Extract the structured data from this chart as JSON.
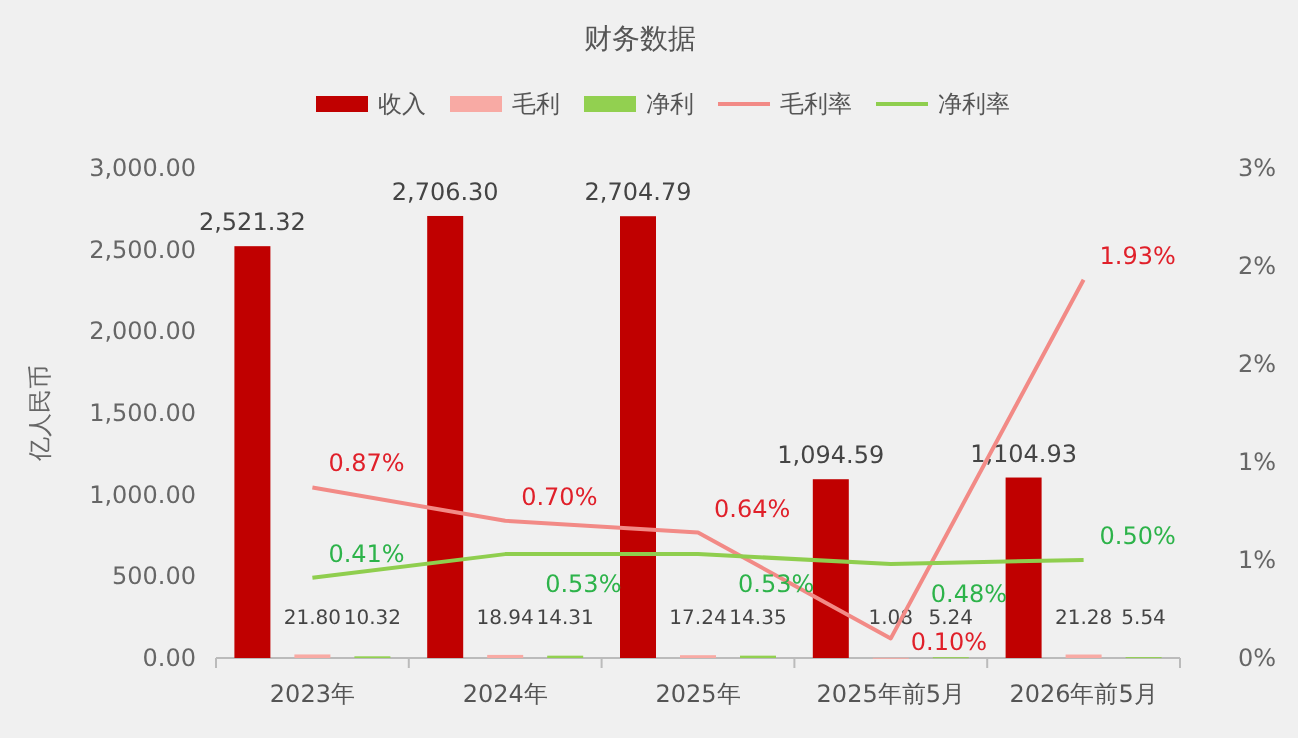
{
  "chart_data": {
    "type": "bar",
    "title": "财务数据",
    "ylabel": "亿人民币",
    "legend": "top",
    "categories": [
      "2023年",
      "2024年",
      "2025年",
      "2025年前5月",
      "2026年前5月"
    ],
    "series": [
      {
        "name": "收入",
        "color": "#c00000",
        "values": [
          2521.32,
          2706.3,
          2704.79,
          1094.59,
          1104.93
        ],
        "value_labels": [
          "2,521.32",
          "2,706.30",
          "2,704.79",
          "1,094.59",
          "1,104.93"
        ]
      },
      {
        "name": "毛利",
        "color": "#f8aaa4",
        "values": [
          21.8,
          18.94,
          17.24,
          1.08,
          21.28
        ],
        "value_labels": [
          "21.80",
          "18.94",
          "17.24",
          "1.08",
          "21.28"
        ]
      },
      {
        "name": "净利",
        "color": "#92d050",
        "values": [
          10.32,
          14.31,
          14.35,
          5.24,
          5.54
        ],
        "value_labels": [
          "10.32",
          "14.31",
          "14.35",
          "5.24",
          "5.54"
        ]
      },
      {
        "name": "毛利率",
        "type": "line",
        "axis": "y2",
        "color": "#f28a86",
        "values": [
          0.87,
          0.7,
          0.64,
          0.1,
          1.93
        ],
        "value_labels": [
          "0.87%",
          "0.70%",
          "0.64%",
          "0.10%",
          "1.93%"
        ]
      },
      {
        "name": "净利率",
        "type": "line",
        "axis": "y2",
        "color": "#8fce4e",
        "values": [
          0.41,
          0.53,
          0.53,
          0.48,
          0.5
        ],
        "value_labels": [
          "0.41%",
          "0.53%",
          "0.53%",
          "0.48%",
          "0.50%"
        ]
      }
    ],
    "ylim": [
      0,
      3000
    ],
    "yticks": [
      {
        "value": 0,
        "label": "0.00"
      },
      {
        "value": 500,
        "label": "500.00"
      },
      {
        "value": 1000,
        "label": "1,000.00"
      },
      {
        "value": 1500,
        "label": "1,500.00"
      },
      {
        "value": 2000,
        "label": "2,000.00"
      },
      {
        "value": 2500,
        "label": "2,500.00"
      },
      {
        "value": 3000,
        "label": "3,000.00"
      }
    ],
    "y2lim": [
      0,
      2.5
    ],
    "y2ticks": [
      {
        "value": 0,
        "label": "0%"
      },
      {
        "value": 0.5,
        "label": "1%"
      },
      {
        "value": 1,
        "label": "1%"
      },
      {
        "value": 1.5,
        "label": "2%"
      },
      {
        "value": 2,
        "label": "2%"
      },
      {
        "value": 2.5,
        "label": "3%"
      }
    ]
  }
}
